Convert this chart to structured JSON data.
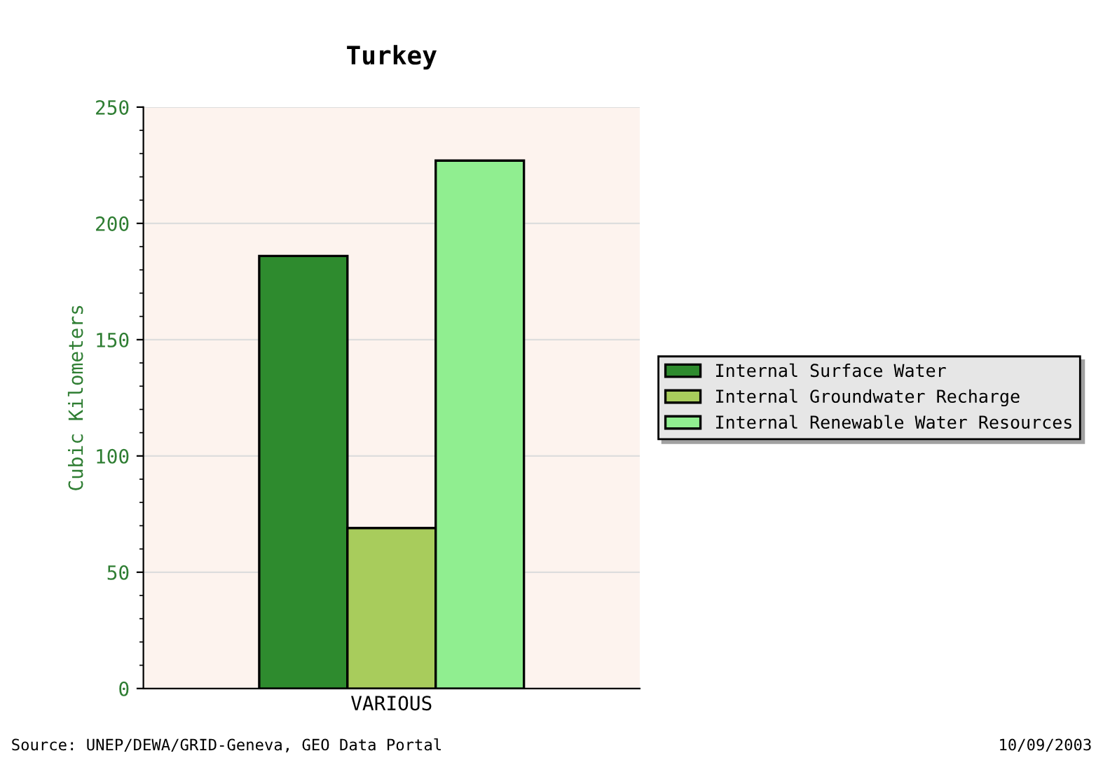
{
  "chart_data": {
    "type": "bar",
    "title": "Turkey",
    "ylabel": "Cubic Kilometers",
    "categories": [
      "VARIOUS"
    ],
    "series": [
      {
        "name": "Internal Surface Water",
        "color": "#2e8b2e",
        "values": [
          186
        ]
      },
      {
        "name": "Internal Groundwater Recharge",
        "color": "#a8cc5c",
        "values": [
          69
        ]
      },
      {
        "name": "Internal Renewable Water Resources",
        "color": "#90ee90",
        "values": [
          227
        ]
      }
    ],
    "ylim": [
      0,
      250
    ],
    "yticks": [
      0,
      50,
      100,
      150,
      200,
      250
    ],
    "grid": "y",
    "legend": "right",
    "annotations": [
      "Source: UNEP/DEWA/GRID-Geneva, GEO Data Portal",
      "10/09/2003"
    ]
  }
}
